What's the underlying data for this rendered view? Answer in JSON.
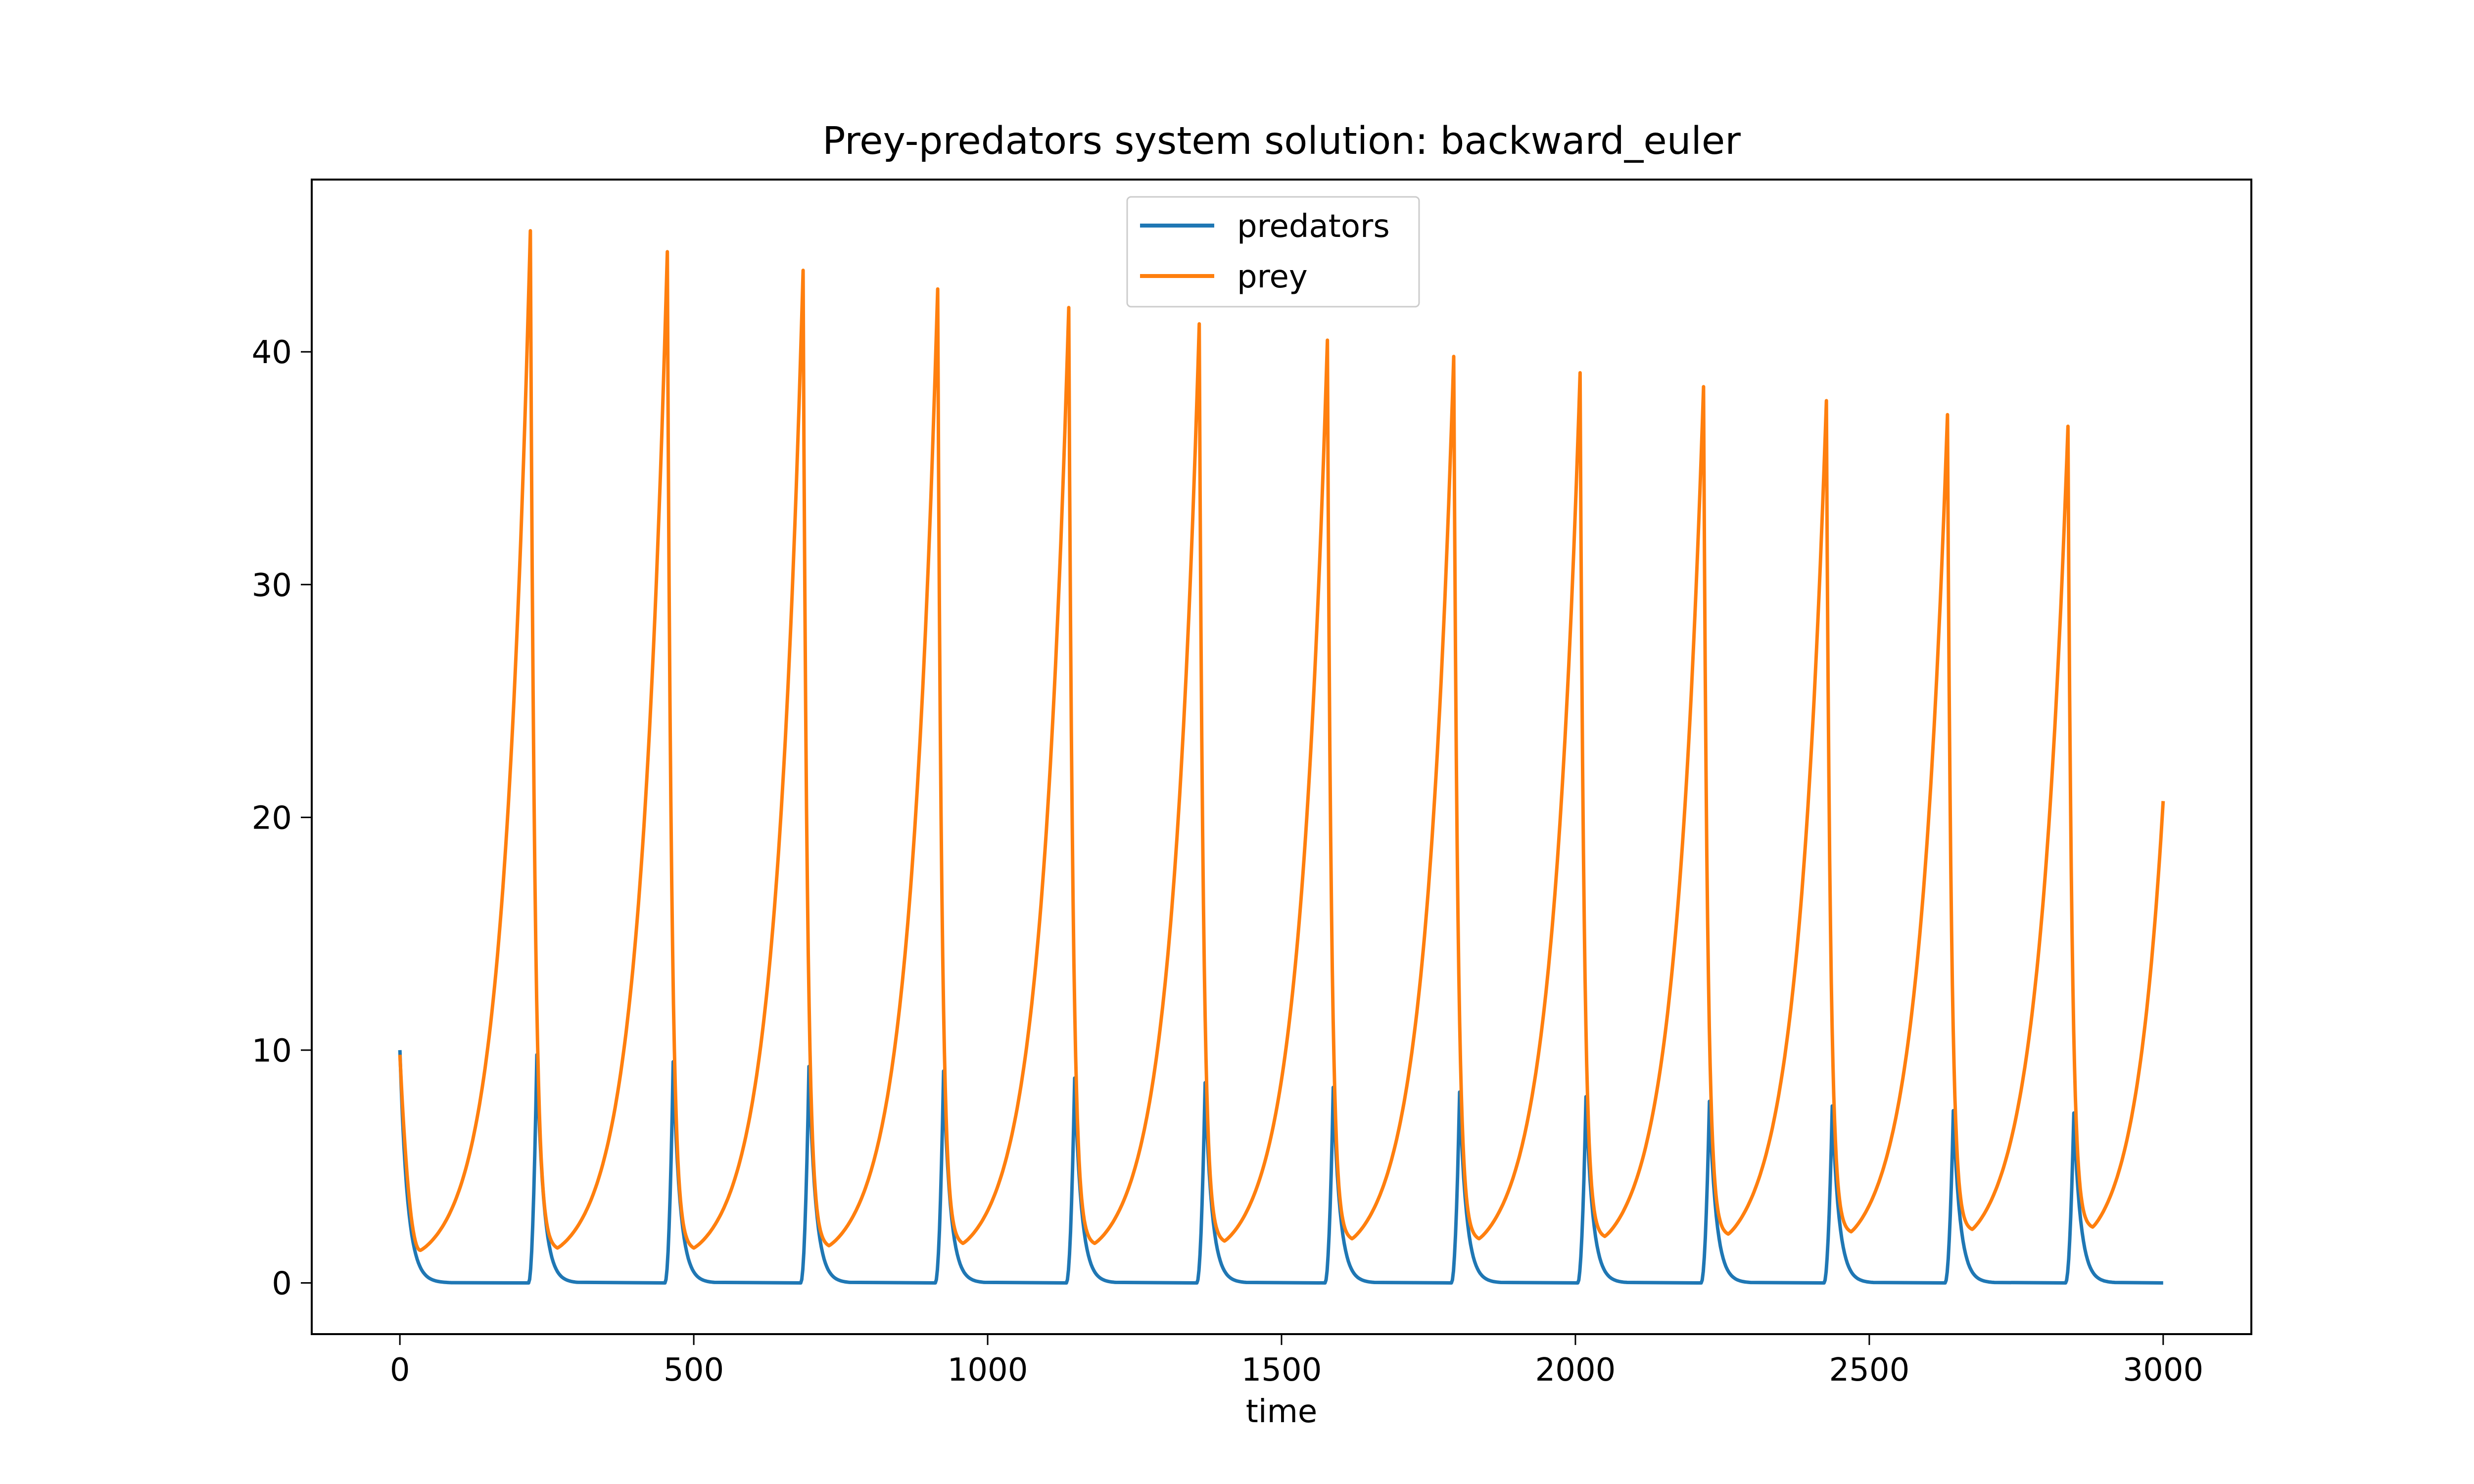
{
  "chart_data": {
    "type": "line",
    "title": "Prey-predators system solution: backward_euler",
    "xlabel": "time",
    "ylabel": "",
    "xlim": [
      -150,
      3150
    ],
    "ylim": [
      -2.2,
      47.4
    ],
    "xticks": [
      0,
      500,
      1000,
      1500,
      2000,
      2500,
      3000
    ],
    "yticks": [
      0,
      10,
      20,
      30,
      40
    ],
    "grid": false,
    "legend_position": "top-center",
    "x_range": [
      0,
      3000
    ],
    "series": [
      {
        "name": "predators",
        "color": "#1f77b4",
        "start_value": 10.0,
        "end_value": 0.0,
        "baseline": 0.0,
        "peaks": [
          {
            "t": 233,
            "value": 9.8
          },
          {
            "t": 465,
            "value": 9.5
          },
          {
            "t": 696,
            "value": 9.3
          },
          {
            "t": 925,
            "value": 9.1
          },
          {
            "t": 1148,
            "value": 8.8
          },
          {
            "t": 1370,
            "value": 8.6
          },
          {
            "t": 1588,
            "value": 8.4
          },
          {
            "t": 1803,
            "value": 8.2
          },
          {
            "t": 2018,
            "value": 8.0
          },
          {
            "t": 2228,
            "value": 7.8
          },
          {
            "t": 2437,
            "value": 7.6
          },
          {
            "t": 2643,
            "value": 7.4
          },
          {
            "t": 2848,
            "value": 7.3
          }
        ]
      },
      {
        "name": "prey",
        "color": "#ff7f0e",
        "start_value": 9.8,
        "end_value": 20.7,
        "peaks": [
          {
            "t": 222,
            "value": 45.2
          },
          {
            "t": 455,
            "value": 44.3
          },
          {
            "t": 686,
            "value": 43.5
          },
          {
            "t": 915,
            "value": 42.7
          },
          {
            "t": 1138,
            "value": 41.9
          },
          {
            "t": 1360,
            "value": 41.2
          },
          {
            "t": 1578,
            "value": 40.5
          },
          {
            "t": 1793,
            "value": 39.8
          },
          {
            "t": 2008,
            "value": 39.1
          },
          {
            "t": 2218,
            "value": 38.5
          },
          {
            "t": 2427,
            "value": 37.9
          },
          {
            "t": 2633,
            "value": 37.3
          },
          {
            "t": 2838,
            "value": 36.8
          }
        ],
        "troughs": [
          {
            "t": 35,
            "value": 1.4
          },
          {
            "t": 268,
            "value": 1.5
          },
          {
            "t": 500,
            "value": 1.5
          },
          {
            "t": 730,
            "value": 1.6
          },
          {
            "t": 958,
            "value": 1.7
          },
          {
            "t": 1182,
            "value": 1.7
          },
          {
            "t": 1403,
            "value": 1.8
          },
          {
            "t": 1620,
            "value": 1.9
          },
          {
            "t": 1836,
            "value": 1.9
          },
          {
            "t": 2050,
            "value": 2.0
          },
          {
            "t": 2260,
            "value": 2.1
          },
          {
            "t": 2469,
            "value": 2.2
          },
          {
            "t": 2675,
            "value": 2.3
          },
          {
            "t": 2880,
            "value": 2.4
          }
        ]
      }
    ]
  }
}
